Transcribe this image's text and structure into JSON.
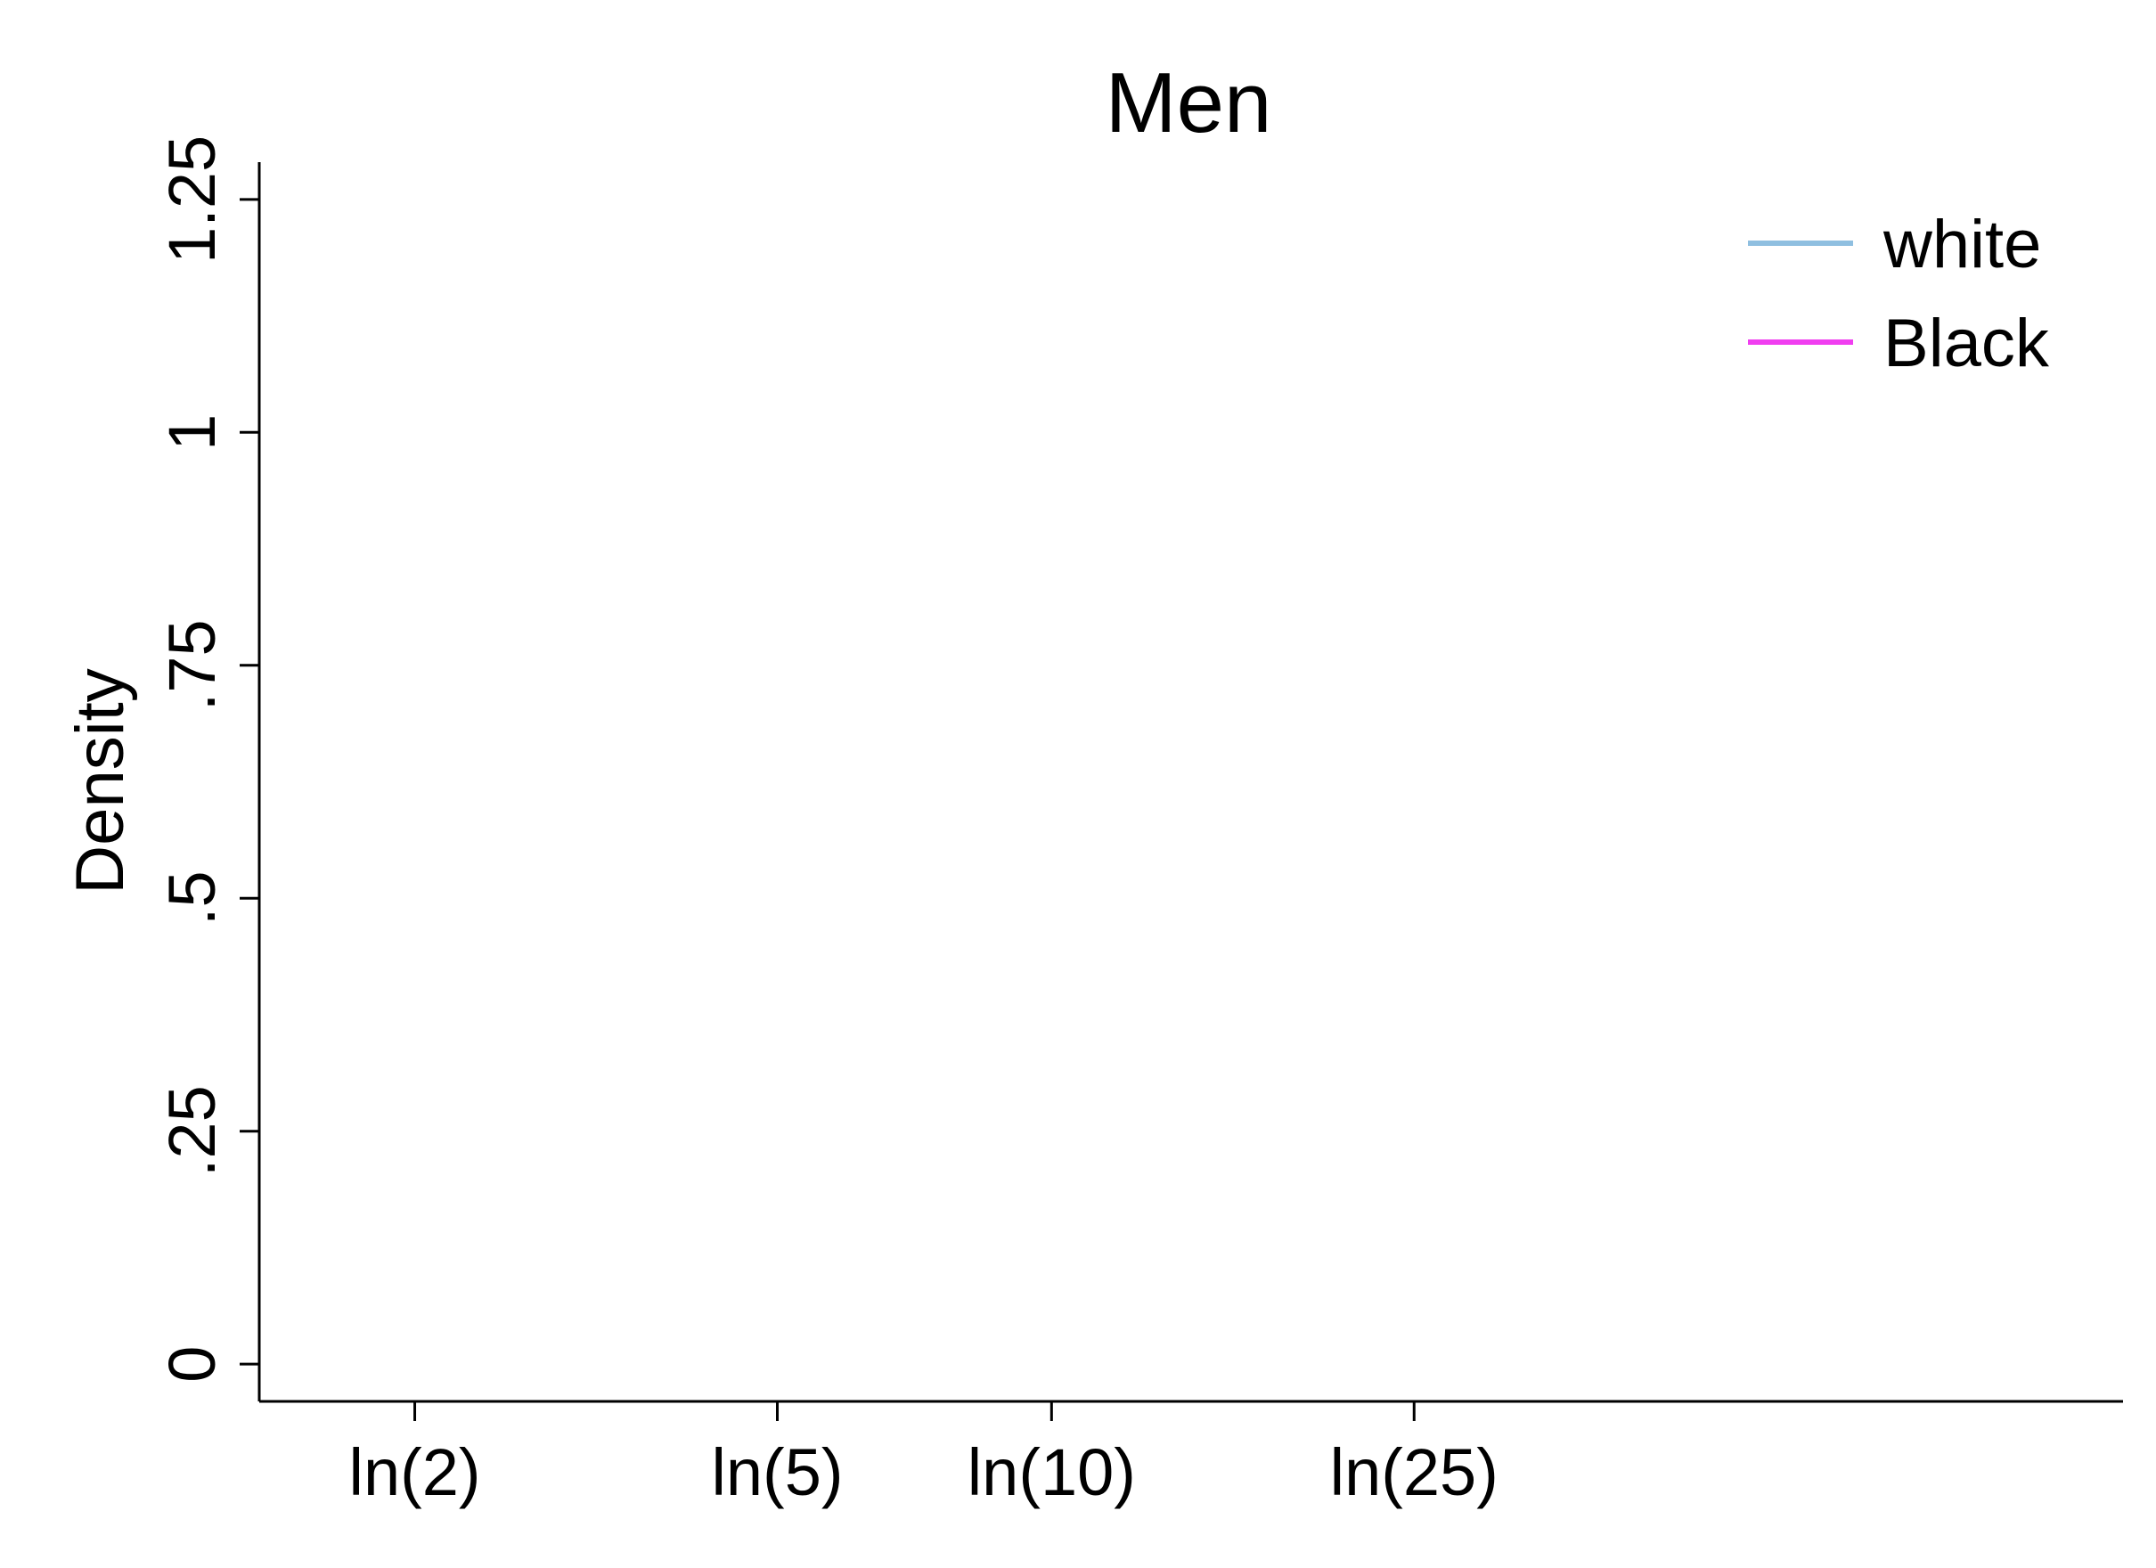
{
  "chart_data": {
    "type": "line",
    "title": "Men",
    "xlabel": "",
    "ylabel": "Density",
    "x_scale": "log",
    "xlim": [
      1.35,
      150
    ],
    "ylim": [
      -0.04,
      1.29
    ],
    "x_ticks": [
      {
        "value": 2,
        "label": "ln(2)"
      },
      {
        "value": 5,
        "label": "ln(5)"
      },
      {
        "value": 10,
        "label": "ln(10)"
      },
      {
        "value": 25,
        "label": "ln(25)"
      }
    ],
    "y_ticks": [
      {
        "value": 0,
        "label": "0"
      },
      {
        "value": 0.25,
        "label": ".25"
      },
      {
        "value": 0.5,
        "label": ".5"
      },
      {
        "value": 0.75,
        "label": ".75"
      },
      {
        "value": 1,
        "label": "1"
      },
      {
        "value": 1.25,
        "label": "1.25"
      }
    ],
    "grid": false,
    "legend_position": "top-right",
    "series": [
      {
        "name": "white",
        "color": "#8fbfe0",
        "x": [],
        "y": []
      },
      {
        "name": "Black",
        "color": "#f03ef0",
        "x": [],
        "y": []
      }
    ]
  }
}
